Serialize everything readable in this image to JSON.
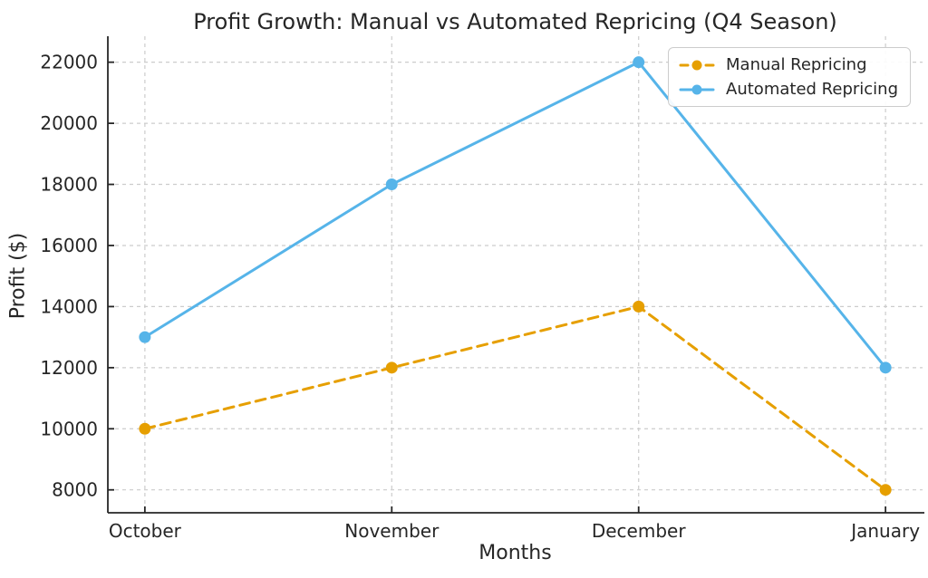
{
  "figure": {
    "background": "#ffffff"
  },
  "chart_data": {
    "type": "line",
    "title": "Profit Growth: Manual vs Automated Repricing (Q4 Season)",
    "xlabel": "Months",
    "ylabel": "Profit ($)",
    "categories": [
      "October",
      "November",
      "December",
      "January"
    ],
    "series": [
      {
        "name": "Manual Repricing",
        "values": [
          10000,
          12000,
          14000,
          8000
        ],
        "color": "#E69F00",
        "line_style": "dashed",
        "marker": "circle"
      },
      {
        "name": "Automated Repricing",
        "values": [
          13000,
          18000,
          22000,
          12000
        ],
        "color": "#56B4E9",
        "line_style": "solid",
        "marker": "circle"
      }
    ],
    "yticks": [
      8000,
      10000,
      12000,
      14000,
      16000,
      18000,
      20000,
      22000
    ],
    "ylim": [
      7250,
      22850
    ],
    "grid": true,
    "grid_style": "dashed",
    "legend_position": "upper right"
  },
  "style": {
    "grid_color": "#cccccc",
    "axis_color": "#262626",
    "text_color": "#262626",
    "tick_font_px": 20
  }
}
